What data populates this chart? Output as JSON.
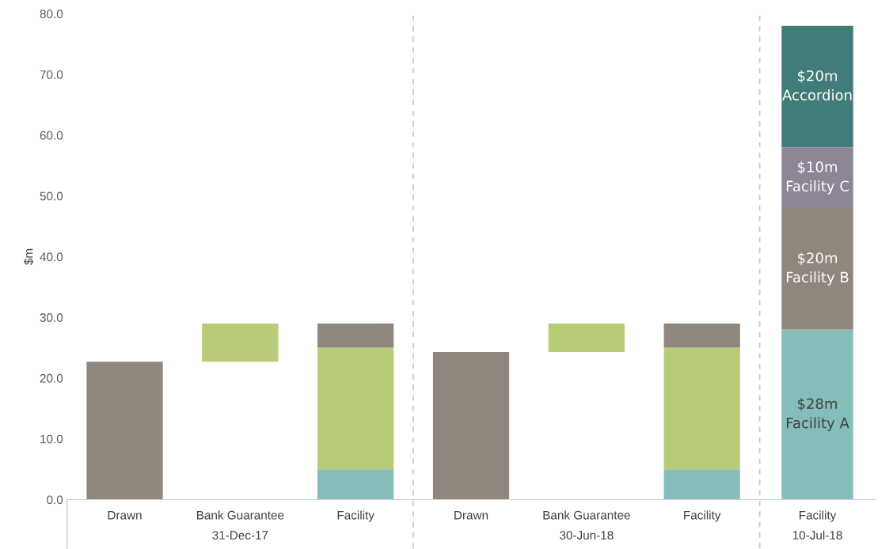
{
  "chart_data": [
    {
      "type": "bar",
      "stacked": true,
      "ylabel": "$m",
      "xlabel": "31-Dec-17",
      "categories": [
        "Drawn",
        "Bank Guarantee",
        "Facility"
      ],
      "series": [
        {
          "color": "#85bdbb",
          "values": [
            null,
            null,
            5
          ]
        },
        {
          "color": "#b8cb77",
          "values": [
            null,
            null,
            20
          ]
        },
        {
          "color": "#b8cb77",
          "values": [
            null,
            6.3,
            null
          ],
          "base": [
            null,
            22.7,
            null
          ]
        },
        {
          "color": "#8f877d",
          "values": [
            22.7,
            null,
            4
          ]
        }
      ],
      "ylim": [
        0,
        80
      ],
      "yticks": [
        {
          "value": 0,
          "label": "0.0"
        },
        {
          "value": 10,
          "label": "10.0"
        },
        {
          "value": 20,
          "label": "20.0"
        },
        {
          "value": 30,
          "label": "30.0"
        },
        {
          "value": 40,
          "label": "40.0"
        },
        {
          "value": 50,
          "label": "50.0"
        },
        {
          "value": 60,
          "label": "60.0"
        },
        {
          "value": 70,
          "label": "70.0"
        },
        {
          "value": 80,
          "label": "80.0"
        }
      ],
      "grid": false
    },
    {
      "type": "bar",
      "stacked": true,
      "xlabel": "30-Jun-18",
      "tick_labels": "x",
      "categories": [
        "Drawn",
        "Bank Guarantee",
        "Facility"
      ],
      "series": [
        {
          "color": "#85bdbb",
          "values": [
            null,
            null,
            5
          ]
        },
        {
          "color": "#b8cb77",
          "values": [
            null,
            null,
            20
          ]
        },
        {
          "color": "#b8cb77",
          "values": [
            null,
            4.7,
            null
          ],
          "base": [
            null,
            24.3,
            null
          ]
        },
        {
          "color": "#8f877d",
          "values": [
            24.3,
            null,
            4
          ]
        }
      ],
      "ylim": [
        0,
        80
      ],
      "grid": false
    },
    {
      "type": "bar",
      "stacked": true,
      "xlabel": "10-Jul-18",
      "tick_labels": "x",
      "categories": [
        "Facility"
      ],
      "series": [
        {
          "color": "#85bdbb",
          "values": [
            28
          ],
          "value_labels": [
            "$28m\nFacility A"
          ]
        },
        {
          "color": "#8f877d",
          "values": [
            20
          ],
          "value_labels": [
            "$20m\nFacility B"
          ]
        },
        {
          "color": "#8c8696",
          "values": [
            10
          ],
          "value_labels": [
            "$10m\nFacility C"
          ]
        },
        {
          "color": "#417c7a",
          "values": [
            20
          ],
          "value_labels": [
            "$20m\nAccordion"
          ]
        }
      ],
      "ylim": [
        0,
        80
      ],
      "grid": false
    }
  ]
}
